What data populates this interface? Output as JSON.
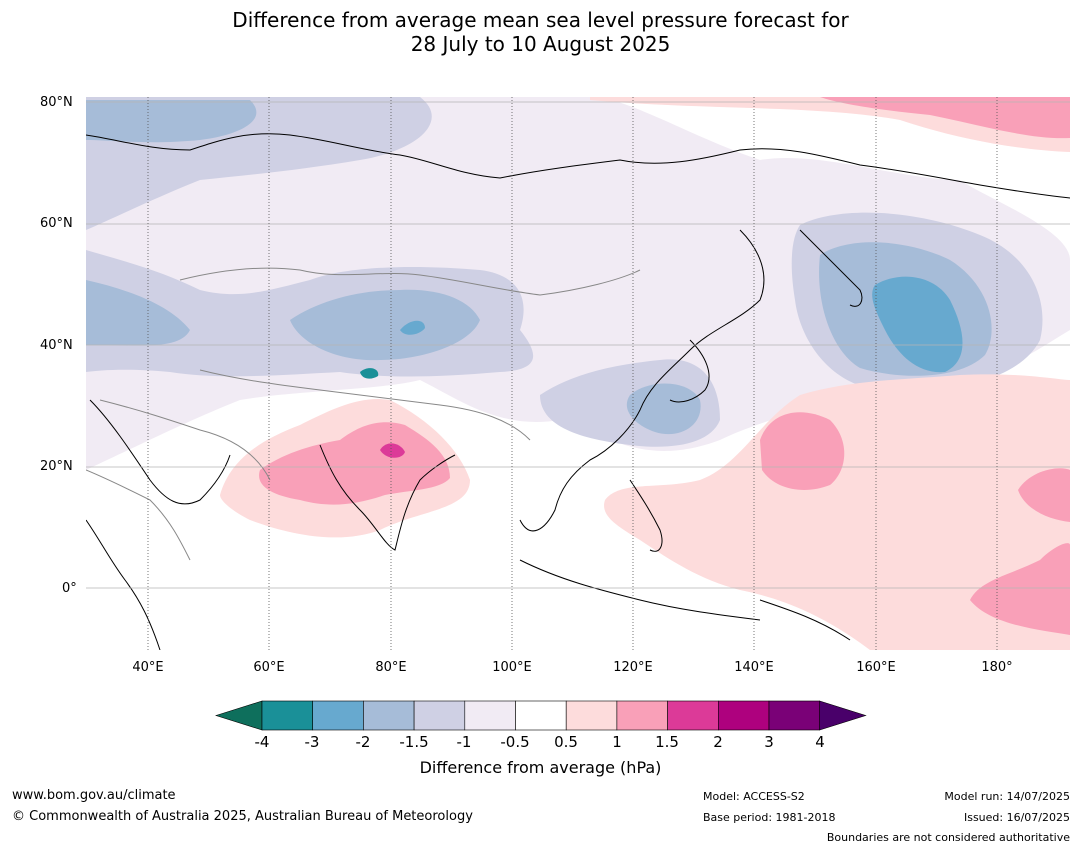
{
  "title_line1": "Difference from average mean sea level pressure forecast for",
  "title_line2": "28 July to 10 August 2025",
  "map": {
    "lat_labels": [
      "80°N",
      "60°N",
      "40°N",
      "20°N",
      "0°"
    ],
    "lon_labels": [
      "40°E",
      "60°E",
      "80°E",
      "100°E",
      "120°E",
      "140°E",
      "160°E",
      "180°"
    ]
  },
  "colorbar": {
    "title": "Difference from average (hPa)",
    "ticks": [
      "-4",
      "-3",
      "-2",
      "-1.5",
      "-1",
      "-0.5",
      "0.5",
      "1",
      "1.5",
      "2",
      "3",
      "4"
    ],
    "colors": [
      "#0e6f5c",
      "#1a9098",
      "#67a9cf",
      "#a6bcd8",
      "#cfd0e4",
      "#f1ebf4",
      "#ffffff",
      "#fddcdc",
      "#f9a0b8",
      "#dc3a98",
      "#ae017e",
      "#7a0177",
      "#49006a"
    ]
  },
  "footer": {
    "url": "www.bom.gov.au/climate",
    "copyright": "© Commonwealth of Australia 2025, Australian Bureau of Meteorology",
    "model": "Model: ACCESS-S2",
    "base_period": "Base period: 1981-2018",
    "model_run": "Model run: 14/07/2025",
    "issued": "Issued: 16/07/2025",
    "disclaimer": "Boundaries are not considered authoritative"
  }
}
